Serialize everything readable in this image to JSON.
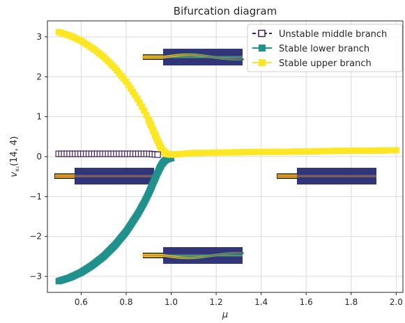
{
  "chart_data": {
    "type": "line",
    "title": "Bifurcation diagram",
    "xlabel": "μ",
    "ylabel_main": "v",
    "ylabel_sub": "x₂",
    "ylabel_args": "(14, 4)",
    "xlim": [
      0.45,
      2.03
    ],
    "ylim": [
      -3.4,
      3.4
    ],
    "xticks": [
      0.6,
      0.8,
      1.0,
      1.2,
      1.4,
      1.6,
      1.8,
      2.0
    ],
    "xtick_labels": [
      "0.6",
      "0.8",
      "1.0",
      "1.2",
      "1.4",
      "1.6",
      "1.8",
      "2.0"
    ],
    "yticks": [
      -3,
      -2,
      -1,
      0,
      1,
      2,
      3
    ],
    "ytick_labels": [
      "−3",
      "−2",
      "−1",
      "0",
      "1",
      "2",
      "3"
    ],
    "grid": true,
    "legend_position": "top-right",
    "series": [
      {
        "name": "Unstable middle branch",
        "color": "#3f1f58",
        "marker": "open-square",
        "x": [
          0.5,
          0.52,
          0.54,
          0.56,
          0.58,
          0.6,
          0.62,
          0.64,
          0.66,
          0.68,
          0.7,
          0.72,
          0.74,
          0.76,
          0.78,
          0.8,
          0.82,
          0.84,
          0.86,
          0.88,
          0.9,
          0.92,
          0.94
        ],
        "y": [
          0.07,
          0.07,
          0.07,
          0.07,
          0.07,
          0.07,
          0.07,
          0.07,
          0.07,
          0.07,
          0.07,
          0.07,
          0.07,
          0.07,
          0.07,
          0.07,
          0.07,
          0.07,
          0.07,
          0.07,
          0.07,
          0.06,
          0.05
        ]
      },
      {
        "name": "Stable lower branch",
        "color": "#21918c",
        "marker": "filled-square",
        "x": [
          0.5,
          0.55,
          0.6,
          0.65,
          0.7,
          0.75,
          0.8,
          0.85,
          0.88,
          0.9,
          0.92,
          0.94,
          0.95,
          0.96,
          0.97,
          0.98,
          0.99,
          1.0
        ],
        "y": [
          -3.12,
          -3.03,
          -2.9,
          -2.72,
          -2.5,
          -2.22,
          -1.88,
          -1.45,
          -1.15,
          -0.92,
          -0.66,
          -0.4,
          -0.28,
          -0.18,
          -0.11,
          -0.07,
          -0.05,
          -0.04
        ]
      },
      {
        "name": "Stable upper branch",
        "color": "#fde725",
        "marker": "filled-square",
        "x": [
          0.5,
          0.55,
          0.6,
          0.65,
          0.7,
          0.75,
          0.8,
          0.85,
          0.88,
          0.9,
          0.92,
          0.94,
          0.95,
          0.96,
          0.97,
          0.98,
          1.0,
          1.05,
          1.1,
          1.2,
          1.3,
          1.4,
          1.5,
          1.6,
          1.7,
          1.8,
          1.9,
          2.0
        ],
        "y": [
          3.12,
          3.03,
          2.9,
          2.72,
          2.5,
          2.22,
          1.88,
          1.45,
          1.15,
          0.92,
          0.66,
          0.4,
          0.28,
          0.18,
          0.11,
          0.07,
          0.05,
          0.07,
          0.09,
          0.1,
          0.11,
          0.12,
          0.12,
          0.13,
          0.14,
          0.15,
          0.15,
          0.16
        ]
      }
    ]
  },
  "insets": [
    {
      "name": "inset-top",
      "profile": "wave-down"
    },
    {
      "name": "inset-left",
      "profile": "straight"
    },
    {
      "name": "inset-right",
      "profile": "straight"
    },
    {
      "name": "inset-bottom",
      "profile": "wave-up"
    }
  ]
}
